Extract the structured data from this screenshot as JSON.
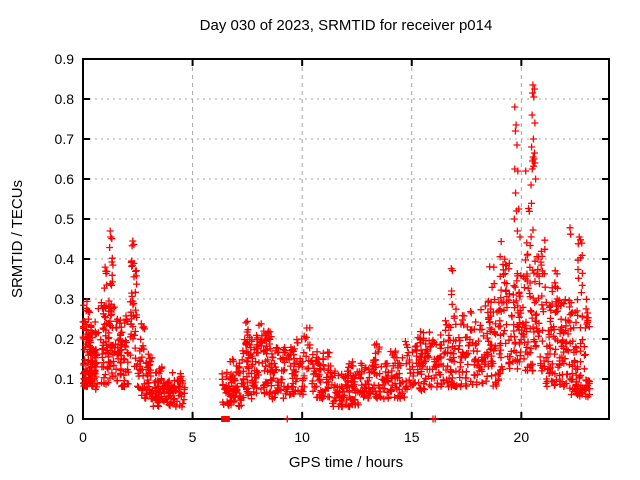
{
  "chart_data": {
    "type": "scatter",
    "title": "Day 030 of 2023, SRMTID for receiver p014",
    "xlabel": "GPS time / hours",
    "ylabel": "SRMTID / TECUs",
    "x_range": [
      0,
      24
    ],
    "y_range": [
      0,
      0.9
    ],
    "x_ticks": [
      0,
      5,
      10,
      15,
      20
    ],
    "x_tick_labels": [
      "0",
      "5",
      "10",
      "15",
      "20"
    ],
    "y_ticks": [
      0,
      0.1,
      0.2,
      0.3,
      0.4,
      0.5,
      0.6,
      0.7,
      0.8,
      0.9
    ],
    "y_tick_labels": [
      "0",
      "0.1",
      "0.2",
      "0.3",
      "0.4",
      "0.5",
      "0.6",
      "0.7",
      "0.8",
      "0.9"
    ],
    "grid": true,
    "grid_color": "#a6a6a6",
    "marker": {
      "shape": "plus",
      "color": "#ff0000",
      "size": 7,
      "stroke_width": 1.3
    },
    "seed": 20230030,
    "clusters": [
      {
        "x0": 0.0,
        "x1": 0.45,
        "y0": 0.08,
        "y1": 0.25,
        "n": 85,
        "bias": 1.2
      },
      {
        "x0": 0.03,
        "x1": 0.3,
        "y0": 0.25,
        "y1": 0.31,
        "n": 8,
        "bias": 1
      },
      {
        "x0": 0.3,
        "x1": 0.65,
        "y0": 0.07,
        "y1": 0.18,
        "n": 38,
        "bias": 1
      },
      {
        "x0": 0.55,
        "x1": 0.78,
        "y0": 0.15,
        "y1": 0.28,
        "n": 10,
        "bias": 1
      },
      {
        "x0": 0.8,
        "x1": 1.15,
        "y0": 0.08,
        "y1": 0.3,
        "n": 42,
        "bias": 1
      },
      {
        "x0": 0.95,
        "x1": 1.12,
        "y0": 0.3,
        "y1": 0.38,
        "n": 6,
        "bias": 1
      },
      {
        "x0": 1.15,
        "x1": 1.45,
        "y0": 0.1,
        "y1": 0.33,
        "n": 38,
        "bias": 1
      },
      {
        "x0": 1.2,
        "x1": 1.38,
        "y0": 0.33,
        "y1": 0.46,
        "n": 9,
        "bias": 1
      },
      {
        "x0": 1.45,
        "x1": 2.1,
        "y0": 0.08,
        "y1": 0.26,
        "n": 68,
        "bias": 1.2
      },
      {
        "x0": 2.15,
        "x1": 2.45,
        "y0": 0.12,
        "y1": 0.38,
        "n": 32,
        "bias": 1
      },
      {
        "x0": 2.2,
        "x1": 2.36,
        "y0": 0.38,
        "y1": 0.44,
        "n": 7,
        "bias": 1
      },
      {
        "x0": 2.45,
        "x1": 3.2,
        "y0": 0.05,
        "y1": 0.18,
        "n": 58,
        "bias": 1.4
      },
      {
        "x0": 2.58,
        "x1": 2.82,
        "y0": 0.18,
        "y1": 0.24,
        "n": 6,
        "bias": 1
      },
      {
        "x0": 3.2,
        "x1": 4.65,
        "y0": 0.03,
        "y1": 0.1,
        "n": 105,
        "bias": 1.3
      },
      {
        "x0": 3.3,
        "x1": 3.62,
        "y0": 0.1,
        "y1": 0.14,
        "n": 8,
        "bias": 1
      },
      {
        "x0": 4.05,
        "x1": 4.5,
        "y0": 0.08,
        "y1": 0.12,
        "n": 5,
        "bias": 1
      },
      {
        "x0": 6.35,
        "x1": 6.7,
        "y0": 0.03,
        "y1": 0.12,
        "n": 26,
        "bias": 1.3
      },
      {
        "x0": 6.7,
        "x1": 7.25,
        "y0": 0.03,
        "y1": 0.15,
        "n": 52,
        "bias": 1.3
      },
      {
        "x0": 7.25,
        "x1": 7.75,
        "y0": 0.05,
        "y1": 0.2,
        "n": 48,
        "bias": 1.2
      },
      {
        "x0": 7.4,
        "x1": 7.62,
        "y0": 0.2,
        "y1": 0.25,
        "n": 6,
        "bias": 1
      },
      {
        "x0": 7.75,
        "x1": 8.6,
        "y0": 0.06,
        "y1": 0.22,
        "n": 68,
        "bias": 1.2
      },
      {
        "x0": 7.95,
        "x1": 8.5,
        "y0": 0.18,
        "y1": 0.25,
        "n": 14,
        "bias": 1
      },
      {
        "x0": 8.6,
        "x1": 9.4,
        "y0": 0.05,
        "y1": 0.18,
        "n": 58,
        "bias": 1.2
      },
      {
        "x0": 9.4,
        "x1": 10.1,
        "y0": 0.06,
        "y1": 0.2,
        "n": 52,
        "bias": 1.2
      },
      {
        "x0": 9.9,
        "x1": 10.45,
        "y0": 0.12,
        "y1": 0.23,
        "n": 18,
        "bias": 1
      },
      {
        "x0": 10.45,
        "x1": 11.3,
        "y0": 0.05,
        "y1": 0.17,
        "n": 66,
        "bias": 1.2
      },
      {
        "x0": 11.3,
        "x1": 12.6,
        "y0": 0.03,
        "y1": 0.12,
        "n": 88,
        "bias": 1.3
      },
      {
        "x0": 12.0,
        "x1": 12.35,
        "y0": 0.1,
        "y1": 0.15,
        "n": 8,
        "bias": 1
      },
      {
        "x0": 12.6,
        "x1": 13.6,
        "y0": 0.05,
        "y1": 0.15,
        "n": 66,
        "bias": 1.2
      },
      {
        "x0": 13.2,
        "x1": 13.55,
        "y0": 0.15,
        "y1": 0.19,
        "n": 6,
        "bias": 1
      },
      {
        "x0": 13.6,
        "x1": 14.7,
        "y0": 0.05,
        "y1": 0.17,
        "n": 68,
        "bias": 1.2
      },
      {
        "x0": 14.7,
        "x1": 15.6,
        "y0": 0.07,
        "y1": 0.2,
        "n": 62,
        "bias": 1.2
      },
      {
        "x0": 15.2,
        "x1": 15.55,
        "y0": 0.18,
        "y1": 0.22,
        "n": 6,
        "bias": 1
      },
      {
        "x0": 15.6,
        "x1": 16.5,
        "y0": 0.08,
        "y1": 0.22,
        "n": 58,
        "bias": 1.2
      },
      {
        "x0": 16.5,
        "x1": 17.3,
        "y0": 0.08,
        "y1": 0.25,
        "n": 58,
        "bias": 1.2
      },
      {
        "x0": 16.75,
        "x1": 17.05,
        "y0": 0.25,
        "y1": 0.38,
        "n": 8,
        "bias": 1
      },
      {
        "x0": 17.3,
        "x1": 18.3,
        "y0": 0.08,
        "y1": 0.28,
        "n": 66,
        "bias": 1.2
      },
      {
        "x0": 18.4,
        "x1": 18.78,
        "y0": 0.15,
        "y1": 0.42,
        "n": 16,
        "bias": 1
      },
      {
        "x0": 18.3,
        "x1": 19.2,
        "y0": 0.08,
        "y1": 0.3,
        "n": 66,
        "bias": 1.2
      },
      {
        "x0": 19.0,
        "x1": 19.38,
        "y0": 0.25,
        "y1": 0.45,
        "n": 13,
        "bias": 1
      },
      {
        "x0": 19.2,
        "x1": 20.2,
        "y0": 0.12,
        "y1": 0.4,
        "n": 85,
        "bias": 1.2
      },
      {
        "x0": 20.2,
        "x1": 21.1,
        "y0": 0.12,
        "y1": 0.45,
        "n": 85,
        "bias": 1.2
      },
      {
        "x0": 20.3,
        "x1": 20.55,
        "y0": 0.45,
        "y1": 0.55,
        "n": 5,
        "bias": 1
      },
      {
        "x0": 21.1,
        "x1": 22.2,
        "y0": 0.08,
        "y1": 0.3,
        "n": 105,
        "bias": 1.2
      },
      {
        "x0": 21.3,
        "x1": 21.65,
        "y0": 0.3,
        "y1": 0.38,
        "n": 8,
        "bias": 1
      },
      {
        "x0": 22.2,
        "x1": 23.1,
        "y0": 0.05,
        "y1": 0.3,
        "n": 85,
        "bias": 1.3
      },
      {
        "x0": 22.55,
        "x1": 22.82,
        "y0": 0.3,
        "y1": 0.44,
        "n": 9,
        "bias": 1
      },
      {
        "x0": 22.9,
        "x1": 23.15,
        "y0": 0.05,
        "y1": 0.12,
        "n": 9,
        "bias": 1
      }
    ],
    "explicit_points": [
      [
        1.24,
        0.47
      ],
      [
        1.27,
        0.455
      ],
      [
        2.27,
        0.445
      ],
      [
        19.7,
        0.78
      ],
      [
        19.76,
        0.735
      ],
      [
        19.73,
        0.72
      ],
      [
        19.8,
        0.685
      ],
      [
        19.7,
        0.625
      ],
      [
        19.84,
        0.62
      ],
      [
        19.74,
        0.565
      ],
      [
        19.88,
        0.525
      ],
      [
        19.78,
        0.52
      ],
      [
        19.68,
        0.5
      ],
      [
        19.82,
        0.47
      ],
      [
        19.94,
        0.455
      ],
      [
        20.53,
        0.835
      ],
      [
        20.6,
        0.825
      ],
      [
        20.51,
        0.815
      ],
      [
        20.57,
        0.805
      ],
      [
        20.49,
        0.76
      ],
      [
        20.62,
        0.74
      ],
      [
        20.55,
        0.7
      ],
      [
        20.47,
        0.68
      ],
      [
        20.6,
        0.665
      ],
      [
        20.54,
        0.655
      ],
      [
        20.58,
        0.65
      ],
      [
        20.51,
        0.645
      ],
      [
        20.62,
        0.64
      ],
      [
        20.56,
        0.632
      ],
      [
        20.5,
        0.625
      ],
      [
        20.65,
        0.6
      ],
      [
        20.44,
        0.585
      ],
      [
        20.2,
        0.62
      ],
      [
        22.22,
        0.478
      ],
      [
        22.25,
        0.462
      ],
      [
        22.64,
        0.455
      ],
      [
        22.7,
        0.448
      ],
      [
        22.6,
        0.438
      ]
    ],
    "axis_markers": [
      {
        "x": 6.44,
        "y": 0,
        "style": "square"
      },
      {
        "x": 6.56,
        "y": 0,
        "style": "square"
      },
      {
        "x": 9.32,
        "y": 0,
        "style": "plus"
      },
      {
        "x": 15.97,
        "y": 0,
        "style": "plus"
      },
      {
        "x": 16.07,
        "y": 0,
        "style": "plus"
      }
    ]
  }
}
